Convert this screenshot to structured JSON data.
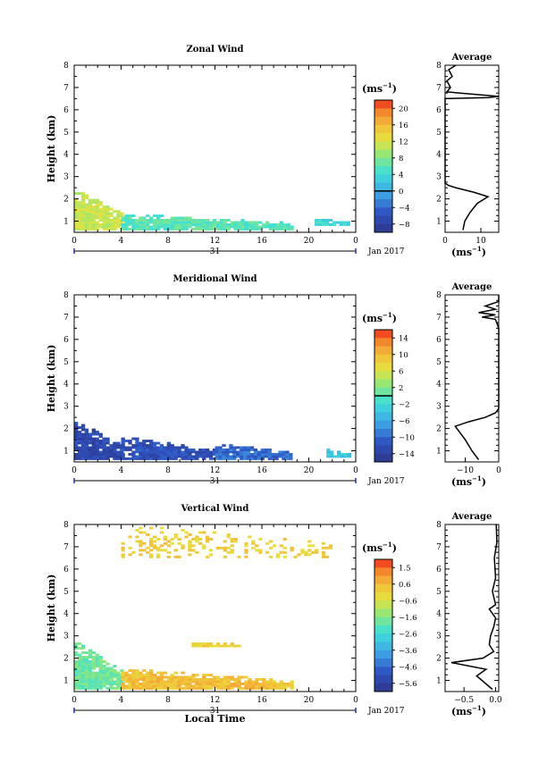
{
  "figure": {
    "panels": [
      {
        "title": "Zonal Wind",
        "ylabel": "Height (km)",
        "unit_label": "(ms",
        "unit_exp": "−1",
        "unit_close": ")",
        "date_label": "31",
        "month_label": "Jan 2017",
        "xlabel": ""
      },
      {
        "title": "Meridional Wind",
        "ylabel": "Height (km)",
        "unit_label": "(ms",
        "unit_exp": "−1",
        "unit_close": ")",
        "date_label": "31",
        "month_label": "Jan 2017",
        "xlabel": ""
      },
      {
        "title": "Vertical Wind",
        "ylabel": "Height (km)",
        "unit_label": "(ms",
        "unit_exp": "−1",
        "unit_close": ")",
        "date_label": "31",
        "month_label": "Jan 2017",
        "xlabel": "Local Time"
      }
    ],
    "profile_title": "Average",
    "profile_xunit": "(ms",
    "profile_xunit_exp": "−1",
    "profile_xunit_close": ")"
  },
  "chart_data": [
    {
      "type": "heatmap",
      "title": "Zonal Wind",
      "xlabel": "",
      "ylabel": "Height (km)",
      "x_ticks": [
        "0",
        "4",
        "8",
        "12",
        "16",
        "20",
        "0"
      ],
      "xlim": [
        0,
        24
      ],
      "ylim": [
        0.5,
        8
      ],
      "y_ticks": [
        "1",
        "2",
        "3",
        "4",
        "5",
        "6",
        "7",
        "8"
      ],
      "colorbar": {
        "label": "(ms−1)",
        "ticks": [
          "20",
          "16",
          "12",
          "8",
          "4",
          "0",
          "−4",
          "−8"
        ],
        "range": [
          -10,
          22
        ],
        "marked_zero": 0
      },
      "colors": {
        "low": "#2c3589",
        "mid": "#3ee0d8",
        "high": "#ee2a1c"
      },
      "description_cells": [
        {
          "t_range": [
            0,
            4
          ],
          "h_range": [
            0.6,
            2.4
          ],
          "value": 11
        },
        {
          "t_range": [
            4,
            18.5
          ],
          "h_range": [
            0.6,
            1.3
          ],
          "value": 6
        },
        {
          "t_range": [
            20.5,
            23.5
          ],
          "h_range": [
            0.8,
            1.1
          ],
          "value": 4
        }
      ],
      "profile": {
        "title": "Average",
        "x_ticks": [
          "0",
          "10"
        ],
        "xlim": [
          0,
          15
        ],
        "points": [
          [
            5,
            0.6
          ],
          [
            5.5,
            1.0
          ],
          [
            7,
            1.4
          ],
          [
            9,
            1.8
          ],
          [
            12,
            2.1
          ],
          [
            8,
            2.3
          ],
          [
            3,
            2.5
          ],
          [
            1,
            2.6
          ],
          [
            0,
            2.7
          ],
          [
            0,
            6.5
          ],
          [
            12,
            6.55
          ],
          [
            15,
            6.6
          ],
          [
            0.5,
            6.8
          ],
          [
            1.5,
            7.0
          ],
          [
            0.5,
            7.3
          ],
          [
            2,
            7.5
          ],
          [
            1,
            7.8
          ],
          [
            3,
            8.0
          ]
        ]
      }
    },
    {
      "type": "heatmap",
      "title": "Meridional Wind",
      "xlabel": "",
      "ylabel": "Height (km)",
      "x_ticks": [
        "0",
        "4",
        "8",
        "12",
        "16",
        "20",
        "0"
      ],
      "xlim": [
        0,
        24
      ],
      "ylim": [
        0.5,
        8
      ],
      "y_ticks": [
        "1",
        "2",
        "3",
        "4",
        "5",
        "6",
        "7",
        "8"
      ],
      "colorbar": {
        "label": "(ms−1)",
        "ticks": [
          "14",
          "10",
          "6",
          "2",
          "−2",
          "−6",
          "−10",
          "−14"
        ],
        "range": [
          -16,
          16
        ],
        "marked_zero": 0
      },
      "colors": {
        "low": "#2c3589",
        "mid": "#3ee0d8",
        "high": "#ee2a1c"
      },
      "description_cells": [
        {
          "t_range": [
            0,
            4
          ],
          "h_range": [
            0.6,
            2.3
          ],
          "value": -13
        },
        {
          "t_range": [
            4,
            12
          ],
          "h_range": [
            0.6,
            1.6
          ],
          "value": -12
        },
        {
          "t_range": [
            12,
            18.5
          ],
          "h_range": [
            0.6,
            1.3
          ],
          "value": -10
        },
        {
          "t_range": [
            21.5,
            23.5
          ],
          "h_range": [
            0.7,
            1.0
          ],
          "value": -4
        }
      ],
      "profile": {
        "title": "Average",
        "x_ticks": [
          "−10",
          "0"
        ],
        "xlim": [
          -16,
          0
        ],
        "points": [
          [
            -6,
            0.6
          ],
          [
            -8,
            1.0
          ],
          [
            -10,
            1.5
          ],
          [
            -12,
            1.9
          ],
          [
            -13,
            2.1
          ],
          [
            -9,
            2.3
          ],
          [
            -4,
            2.5
          ],
          [
            -1,
            2.7
          ],
          [
            0,
            2.9
          ],
          [
            0,
            6.5
          ],
          [
            -1,
            6.9
          ],
          [
            -5,
            7.0
          ],
          [
            -1,
            7.1
          ],
          [
            -6,
            7.2
          ],
          [
            -1,
            7.35
          ],
          [
            -4,
            7.5
          ],
          [
            0,
            7.7
          ],
          [
            0,
            8.0
          ]
        ]
      }
    },
    {
      "type": "heatmap",
      "title": "Vertical Wind",
      "xlabel": "Local Time",
      "ylabel": "Height (km)",
      "x_ticks": [
        "0",
        "4",
        "8",
        "12",
        "16",
        "20",
        "0"
      ],
      "xlim": [
        0,
        24
      ],
      "ylim": [
        0.5,
        8
      ],
      "y_ticks": [
        "1",
        "2",
        "3",
        "4",
        "5",
        "6",
        "7",
        "8"
      ],
      "colorbar": {
        "label": "(ms−1)",
        "ticks": [
          "1.5",
          "0.6",
          "−0.6",
          "−1.6",
          "−2.6",
          "−3.6",
          "−4.6",
          "−5.6"
        ],
        "range": [
          -6.1,
          2.0
        ]
      },
      "colors": {
        "low": "#2c3589",
        "mid": "#3ee0d8",
        "high": "#ee2a1c"
      },
      "description_cells": [
        {
          "t_range": [
            0,
            4
          ],
          "h_range": [
            0.6,
            2.7
          ],
          "value": -1.8
        },
        {
          "t_range": [
            4,
            18.5
          ],
          "h_range": [
            0.6,
            1.5
          ],
          "value": 0.3
        },
        {
          "t_range": [
            4,
            22
          ],
          "h_range": [
            6.5,
            8
          ],
          "value": 0.0
        },
        {
          "t_range": [
            10,
            14
          ],
          "h_range": [
            2.5,
            2.7
          ],
          "value": 0.0
        }
      ],
      "profile": {
        "title": "Average",
        "x_ticks": [
          "−0.5",
          "0.0"
        ],
        "xlim": [
          -0.8,
          0.05
        ],
        "points": [
          [
            -0.05,
            0.6
          ],
          [
            -0.3,
            1.2
          ],
          [
            -0.15,
            1.5
          ],
          [
            -0.7,
            1.8
          ],
          [
            -0.2,
            2.0
          ],
          [
            -0.03,
            2.3
          ],
          [
            -0.1,
            2.6
          ],
          [
            -0.08,
            3.0
          ],
          [
            -0.03,
            3.4
          ],
          [
            0,
            3.8
          ],
          [
            -0.1,
            4.2
          ],
          [
            0,
            4.4
          ],
          [
            -0.05,
            5.0
          ],
          [
            0,
            5.6
          ],
          [
            -0.02,
            6.5
          ],
          [
            0.02,
            7.2
          ],
          [
            0.01,
            8.0
          ]
        ]
      }
    }
  ]
}
